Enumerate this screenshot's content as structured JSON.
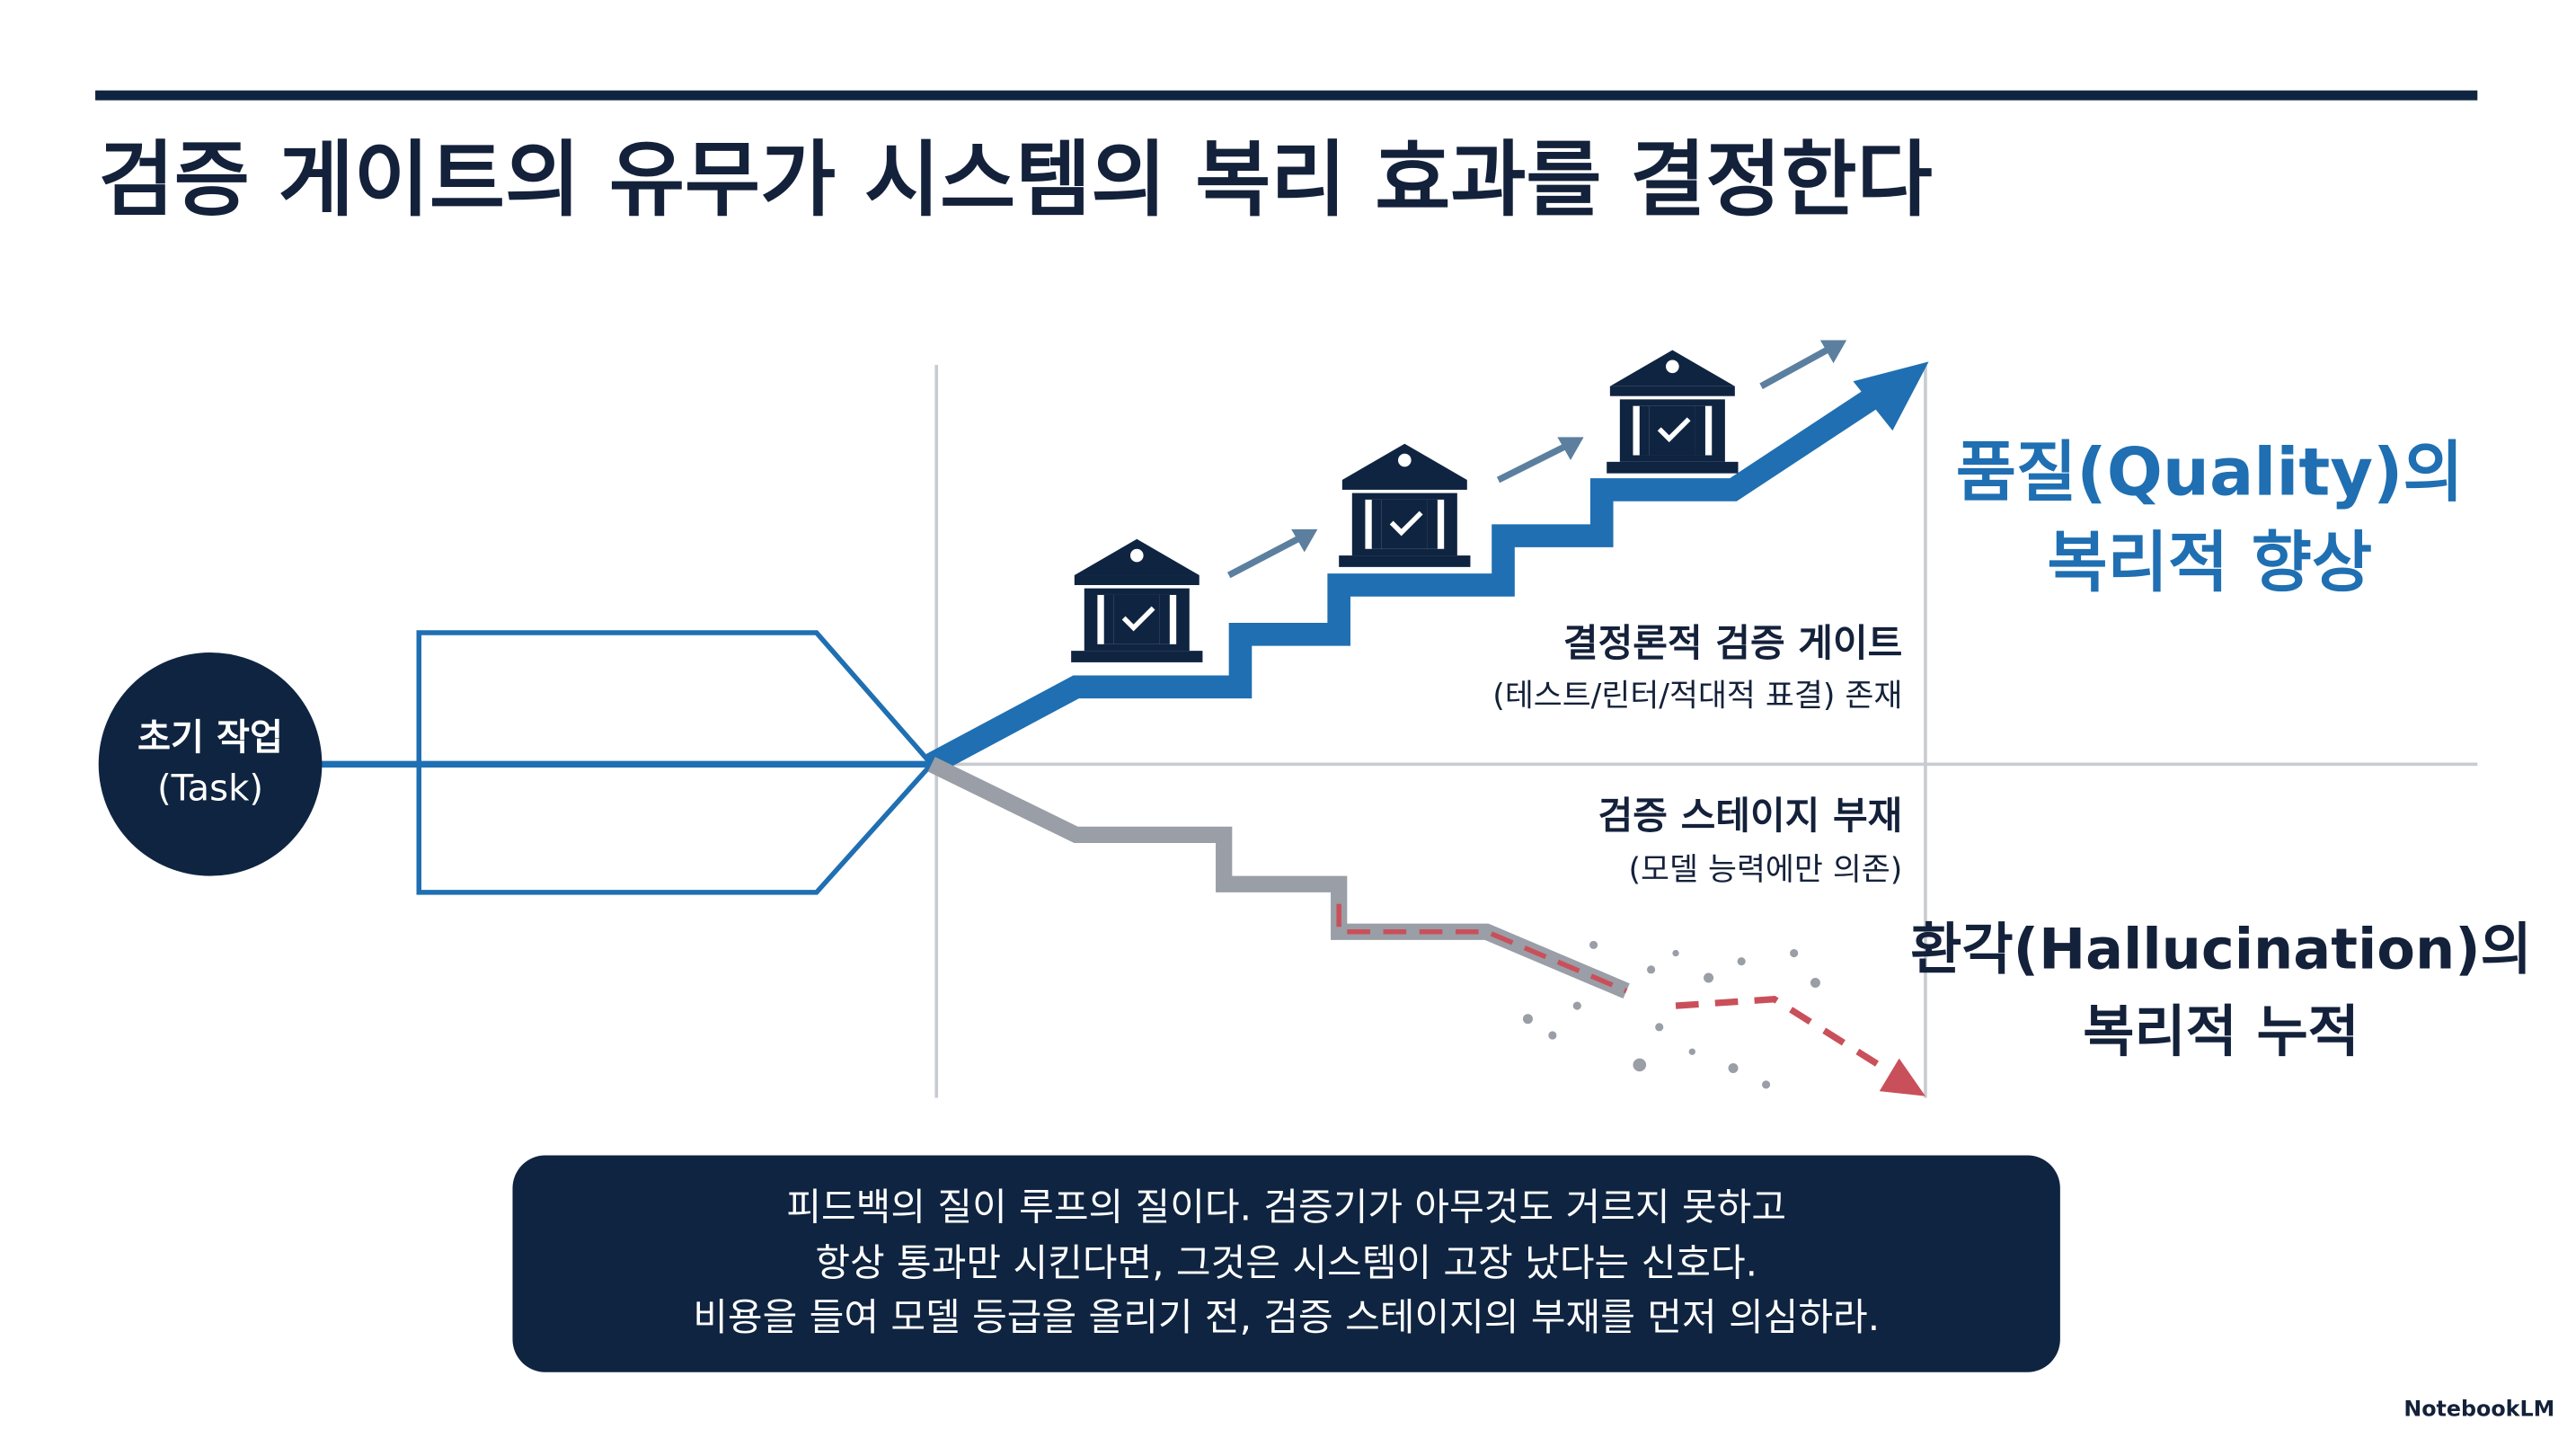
{
  "header": {
    "title": "검증 게이트의 유무가 시스템의 복리 효과를 결정한다"
  },
  "start": {
    "label": "초기 작업",
    "sublabel": "(Task)"
  },
  "gate": {
    "label": "결정론적 검증 게이트",
    "detail": "(테스트/린터/적대적 표결) 존재"
  },
  "no_gate": {
    "label": "검증 스테이지 부재",
    "detail": "(모델 능력에만 의존)"
  },
  "outcomes": {
    "quality": [
      "품질(Quality)의",
      "복리적 향상"
    ],
    "hallucination": [
      "환각(Hallucination)의",
      "복리적 누적"
    ]
  },
  "footer": {
    "lines": [
      "피드백의 질이 루프의 질이다. 검증기가 아무것도 거르지 못하고",
      "항상 통과만 시킨다면, 그것은 시스템이 고장 났다는 신호다.",
      "비용을 들여 모델 등급을 올리기 전, 검증 스테이지의 부재를 먼저 의심하라."
    ]
  },
  "brand": "NotebookLM"
}
